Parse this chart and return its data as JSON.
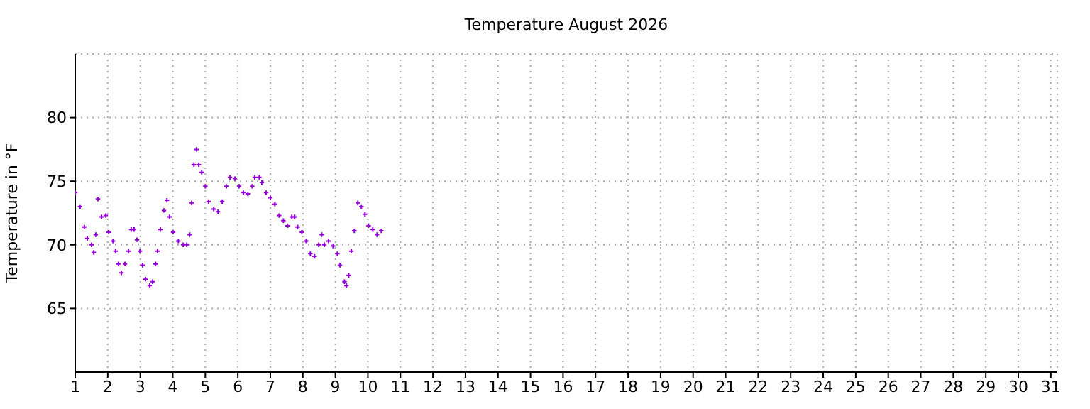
{
  "chart_data": {
    "type": "scatter",
    "title": "Temperature August 2026",
    "ylabel": "Temperature in °F",
    "xlim": [
      1,
      31.2
    ],
    "xticks": [
      1,
      2,
      3,
      4,
      5,
      6,
      7,
      8,
      9,
      10,
      11,
      12,
      13,
      14,
      15,
      16,
      17,
      18,
      19,
      20,
      21,
      22,
      23,
      24,
      25,
      26,
      27,
      28,
      29,
      30,
      31
    ],
    "ylim": [
      60,
      85
    ],
    "yticks": [
      65,
      70,
      75,
      80
    ],
    "grid": true,
    "marker": "cross",
    "legend": false,
    "series": [
      {
        "color": "#9400d3",
        "x": [
          1.0,
          1.15,
          1.28,
          1.37,
          1.5,
          1.57,
          1.63,
          1.7,
          1.81,
          1.94,
          2.03,
          2.16,
          2.24,
          2.33,
          2.42,
          2.53,
          2.64,
          2.72,
          2.81,
          2.9,
          2.99,
          3.07,
          3.16,
          3.29,
          3.38,
          3.47,
          3.53,
          3.62,
          3.73,
          3.82,
          3.9,
          4.01,
          4.17,
          4.32,
          4.43,
          4.52,
          4.58,
          4.65,
          4.73,
          4.8,
          4.89,
          5.0,
          5.1,
          5.26,
          5.39,
          5.52,
          5.65,
          5.76,
          5.91,
          6.04,
          6.17,
          6.31,
          6.44,
          6.52,
          6.66,
          6.74,
          6.87,
          7.0,
          7.14,
          7.27,
          7.4,
          7.53,
          7.66,
          7.75,
          7.84,
          7.97,
          8.1,
          8.23,
          8.36,
          8.49,
          8.58,
          8.66,
          8.79,
          8.93,
          9.06,
          9.14,
          9.28,
          9.34,
          9.41,
          9.49,
          9.58,
          9.69,
          9.8,
          9.91,
          10.02,
          10.15,
          10.28,
          10.41
        ],
        "values": [
          74.1,
          73.0,
          71.4,
          70.5,
          70.0,
          69.4,
          70.8,
          73.6,
          72.2,
          72.3,
          71.0,
          70.3,
          69.5,
          68.5,
          67.8,
          68.5,
          69.5,
          71.2,
          71.2,
          70.4,
          69.5,
          68.4,
          67.3,
          66.8,
          67.1,
          68.5,
          69.5,
          71.2,
          72.7,
          73.5,
          72.2,
          71.0,
          70.3,
          70.0,
          70.0,
          70.8,
          73.3,
          76.3,
          77.5,
          76.3,
          75.7,
          74.6,
          73.4,
          72.8,
          72.6,
          73.4,
          74.6,
          75.3,
          75.2,
          74.6,
          74.1,
          74.0,
          74.6,
          75.3,
          75.3,
          74.9,
          74.1,
          73.7,
          73.2,
          72.3,
          71.9,
          71.5,
          72.2,
          72.2,
          71.4,
          71.0,
          70.3,
          69.3,
          69.1,
          70.0,
          70.8,
          70.0,
          70.3,
          69.9,
          69.3,
          68.4,
          67.1,
          66.8,
          67.6,
          69.5,
          71.1,
          73.3,
          73.0,
          72.4,
          71.5,
          71.2,
          70.8,
          71.1
        ]
      }
    ]
  }
}
